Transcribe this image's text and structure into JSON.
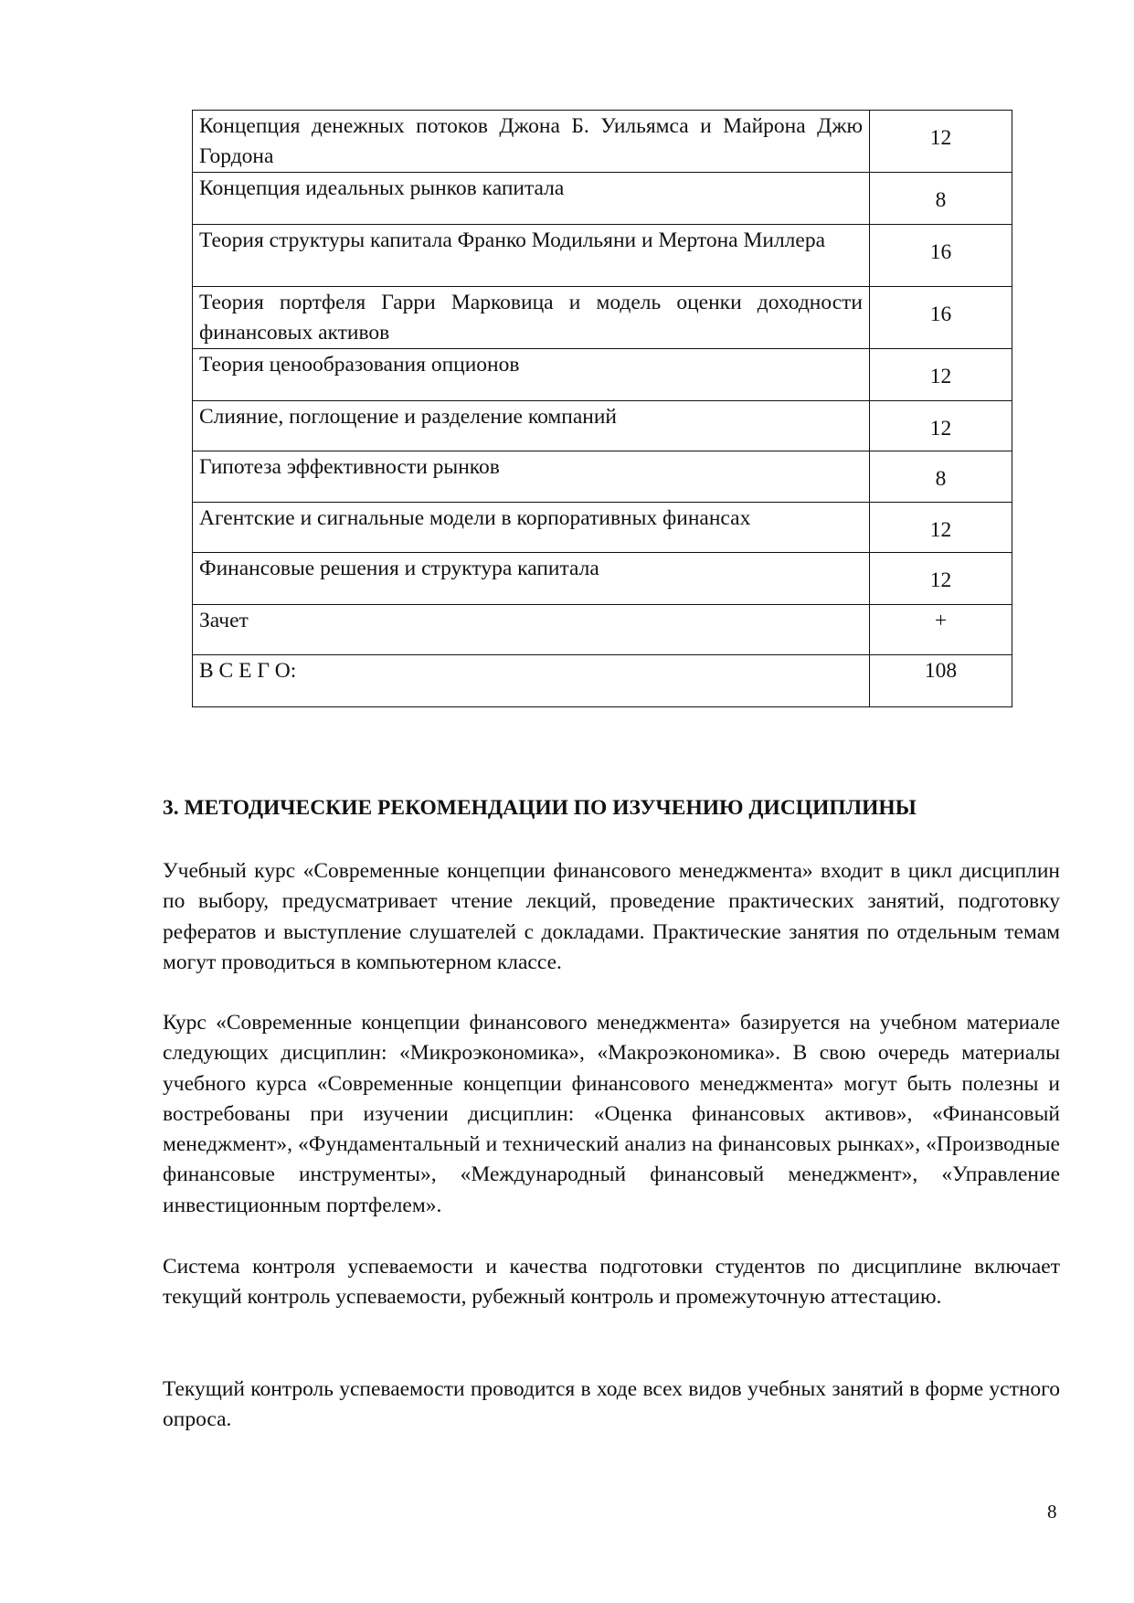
{
  "table": {
    "rows": [
      {
        "name": "Концепция денежных потоков Джона Б. Уильямса и Майрона Джю Гордона",
        "value": "12"
      },
      {
        "name": "Концепция идеальных рынков капитала",
        "value": "8"
      },
      {
        "name": "Теория структуры капитала Франко Модильяни и Мертона Миллера",
        "value": "16"
      },
      {
        "name": "Теория портфеля Гарри Марковица и модель оценки доходности финансовых активов",
        "value": "16"
      },
      {
        "name": "Теория ценообразования опционов",
        "value": "12"
      },
      {
        "name": "Слияние, поглощение и разделение компаний",
        "value": "12"
      },
      {
        "name": "Гипотеза эффективности рынков",
        "value": "8"
      },
      {
        "name": "Агентские и сигнальные модели в корпоративных финансах",
        "value": "12"
      },
      {
        "name": "Финансовые решения и структура капитала",
        "value": "12"
      },
      {
        "name": "Зачет",
        "value": "+"
      },
      {
        "name": "В С Е Г О:",
        "value": "108"
      }
    ]
  },
  "section": {
    "heading": "3. МЕТОДИЧЕСКИЕ РЕКОМЕНДАЦИИ ПО ИЗУЧЕНИЮ ДИСЦИПЛИНЫ",
    "paragraphs": [
      "Учебный курс «Современные концепции финансового менеджмента» входит в цикл дисциплин по выбору, предусматривает чтение лекций, проведение практических занятий, подготовку рефератов и выступление слушателей с докладами. Практические занятия по отдельным темам могут проводиться в компьютерном классе.",
      "Курс «Современные концепции финансового менеджмента» базируется на учебном материале следующих дисциплин: «Микроэкономика», «Макроэкономика». В свою очередь материалы учебного курса «Современные концепции финансового менеджмента» могут быть полезны и востребованы при изучении дисциплин: «Оценка финансовых активов», «Финансовый менеджмент», «Фундаментальный и технический анализ на финансовых рынках», «Производные финансовые инструменты», «Международный финансовый менеджмент», «Управление инвестиционным портфелем».",
      "Система контроля успеваемости и качества подготовки студентов по дисциплине включает текущий контроль успеваемости, рубежный контроль и промежуточную аттестацию.",
      "Текущий контроль успеваемости проводится в ходе всех видов учебных занятий в форме устного опроса."
    ]
  },
  "page_number": "8"
}
